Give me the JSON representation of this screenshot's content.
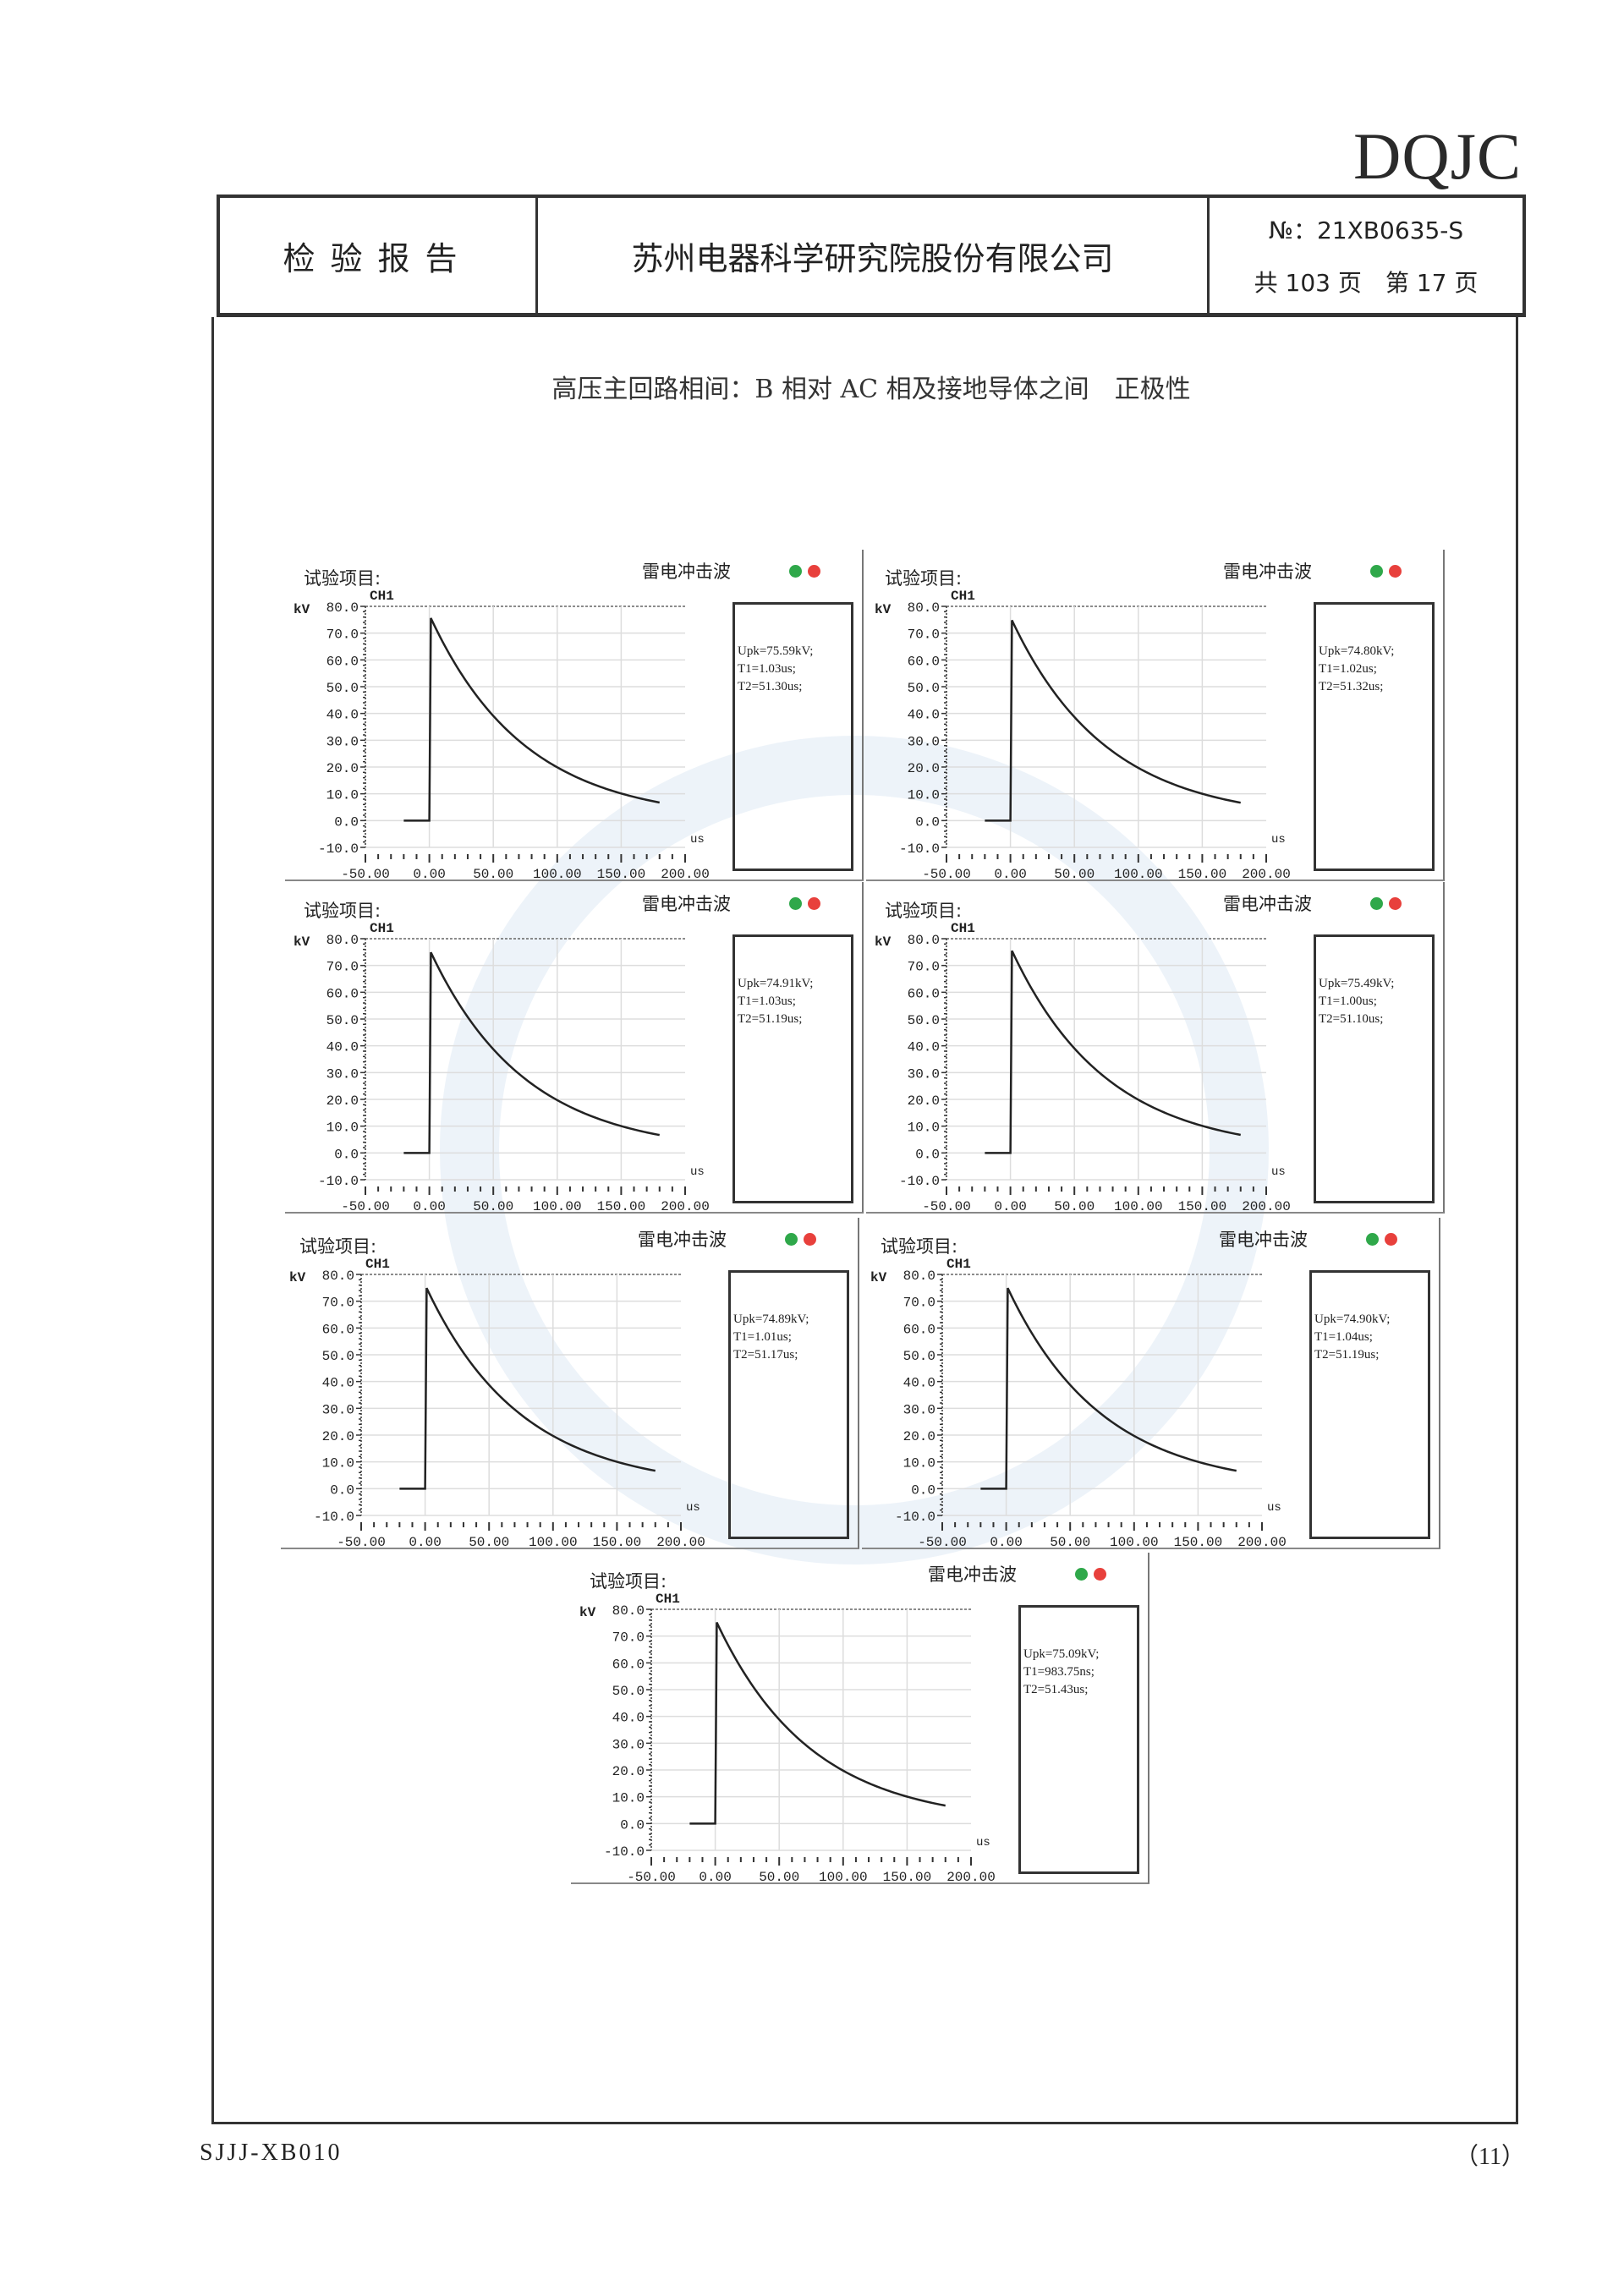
{
  "logo": "DQJC",
  "header": {
    "doc_type": "检验报告",
    "company": "苏州电器科学研究院股份有限公司",
    "report_no": "№：21XB0635-S",
    "pages": "共 103 页　第 17 页"
  },
  "subtitle": "高压主回路相间：B 相对 AC 相及接地导体之间　正极性",
  "panel_labels": {
    "test_item": "试验项目:",
    "wave_type": "雷电冲击波",
    "channel": "CH1",
    "y_unit": "kV",
    "x_unit": "us"
  },
  "indicator_colors": {
    "left": "#2fa84a",
    "right": "#e8403c"
  },
  "chart_data": [
    {
      "type": "line",
      "ylabel": "kV",
      "xlabel": "us",
      "xlim": [
        -50,
        200
      ],
      "ylim": [
        -10,
        80
      ],
      "grid": true,
      "xticks": [
        "-50.00",
        "0.00",
        "50.00",
        "100.00",
        "150.00",
        "200.00"
      ],
      "yticks": [
        "80.0",
        "70.0",
        "60.0",
        "50.0",
        "40.0",
        "30.0",
        "20.0",
        "10.0",
        "0.0",
        "-10.0"
      ],
      "readout": [
        "Upk=75.59kV;",
        "T1=1.03us;",
        "T2=51.30us;"
      ],
      "x": [
        -20,
        0,
        1,
        10,
        25,
        50,
        75,
        100,
        125,
        150,
        180
      ],
      "y": [
        0,
        0,
        75.6,
        66,
        54,
        38,
        27,
        19.5,
        14,
        10,
        6.6
      ]
    },
    {
      "type": "line",
      "ylabel": "kV",
      "xlabel": "us",
      "xlim": [
        -50,
        200
      ],
      "ylim": [
        -10,
        80
      ],
      "grid": true,
      "xticks": [
        "-50.00",
        "0.00",
        "50.00",
        "100.00",
        "150.00",
        "200.00"
      ],
      "yticks": [
        "80.0",
        "70.0",
        "60.0",
        "50.0",
        "40.0",
        "30.0",
        "20.0",
        "10.0",
        "0.0",
        "-10.0"
      ],
      "readout": [
        "Upk=74.80kV;",
        "T1=1.02us;",
        "T2=51.32us;"
      ],
      "x": [
        -20,
        0,
        1,
        10,
        25,
        50,
        75,
        100,
        125,
        150,
        180
      ],
      "y": [
        0,
        0,
        74.8,
        65,
        53,
        38,
        27,
        19,
        14,
        10,
        6.5
      ]
    },
    {
      "type": "line",
      "ylabel": "kV",
      "xlabel": "us",
      "xlim": [
        -50,
        200
      ],
      "ylim": [
        -10,
        80
      ],
      "grid": true,
      "xticks": [
        "-50.00",
        "0.00",
        "50.00",
        "100.00",
        "150.00",
        "200.00"
      ],
      "yticks": [
        "80.0",
        "70.0",
        "60.0",
        "50.0",
        "40.0",
        "30.0",
        "20.0",
        "10.0",
        "0.0",
        "-10.0"
      ],
      "readout": [
        "Upk=74.91kV;",
        "T1=1.03us;",
        "T2=51.19us;"
      ],
      "x": [
        -20,
        0,
        1,
        10,
        25,
        50,
        75,
        100,
        125,
        150,
        180
      ],
      "y": [
        0,
        0,
        74.9,
        65,
        53,
        38,
        27,
        19,
        14,
        10,
        6.5
      ]
    },
    {
      "type": "line",
      "ylabel": "kV",
      "xlabel": "us",
      "xlim": [
        -50,
        200
      ],
      "ylim": [
        -10,
        80
      ],
      "grid": true,
      "xticks": [
        "-50.00",
        "0.00",
        "50.00",
        "100.00",
        "150.00",
        "200.00"
      ],
      "yticks": [
        "80.0",
        "70.0",
        "60.0",
        "50.0",
        "40.0",
        "30.0",
        "20.0",
        "10.0",
        "0.0",
        "-10.0"
      ],
      "readout": [
        "Upk=75.49kV;",
        "T1=1.00us;",
        "T2=51.10us;"
      ],
      "x": [
        -20,
        0,
        1,
        10,
        25,
        50,
        75,
        100,
        125,
        150,
        180
      ],
      "y": [
        0,
        0,
        75.5,
        66,
        54,
        38,
        27,
        19.4,
        14,
        10,
        6.6
      ]
    },
    {
      "type": "line",
      "ylabel": "kV",
      "xlabel": "us",
      "xlim": [
        -50,
        200
      ],
      "ylim": [
        -10,
        80
      ],
      "grid": true,
      "xticks": [
        "-50.00",
        "0.00",
        "50.00",
        "100.00",
        "150.00",
        "200.00"
      ],
      "yticks": [
        "80.0",
        "70.0",
        "60.0",
        "50.0",
        "40.0",
        "30.0",
        "20.0",
        "10.0",
        "0.0",
        "-10.0"
      ],
      "readout": [
        "Upk=74.89kV;",
        "T1=1.01us;",
        "T2=51.17us;"
      ],
      "x": [
        -20,
        0,
        1,
        10,
        25,
        50,
        75,
        100,
        125,
        150,
        180
      ],
      "y": [
        0,
        0,
        74.9,
        65,
        53,
        38,
        27,
        19,
        14,
        10,
        6.5
      ]
    },
    {
      "type": "line",
      "ylabel": "kV",
      "xlabel": "us",
      "xlim": [
        -50,
        200
      ],
      "ylim": [
        -10,
        80
      ],
      "grid": true,
      "xticks": [
        "-50.00",
        "0.00",
        "50.00",
        "100.00",
        "150.00",
        "200.00"
      ],
      "yticks": [
        "80.0",
        "70.0",
        "60.0",
        "50.0",
        "40.0",
        "30.0",
        "20.0",
        "10.0",
        "0.0",
        "-10.0"
      ],
      "readout": [
        "Upk=74.90kV;",
        "T1=1.04us;",
        "T2=51.19us;"
      ],
      "x": [
        -20,
        0,
        1,
        10,
        25,
        50,
        75,
        100,
        125,
        150,
        180
      ],
      "y": [
        0,
        0,
        74.9,
        65,
        53,
        38,
        27,
        19,
        14,
        10,
        6.5
      ]
    },
    {
      "type": "line",
      "ylabel": "kV",
      "xlabel": "us",
      "xlim": [
        -50,
        200
      ],
      "ylim": [
        -10,
        80
      ],
      "grid": true,
      "xticks": [
        "-50.00",
        "0.00",
        "50.00",
        "100.00",
        "150.00",
        "200.00"
      ],
      "yticks": [
        "80.0",
        "70.0",
        "60.0",
        "50.0",
        "40.0",
        "30.0",
        "20.0",
        "10.0",
        "0.0",
        "-10.0"
      ],
      "readout": [
        "Upk=75.09kV;",
        "T1=983.75ns;",
        "T2=51.43us;"
      ],
      "x": [
        -20,
        0,
        1,
        10,
        25,
        50,
        75,
        100,
        125,
        150,
        180
      ],
      "y": [
        0,
        0,
        75.1,
        65.5,
        53.5,
        38,
        27,
        19.3,
        14,
        10,
        6.6
      ]
    }
  ],
  "footer": {
    "form_code": "SJJJ-XB010",
    "page_mark": "（11）"
  }
}
